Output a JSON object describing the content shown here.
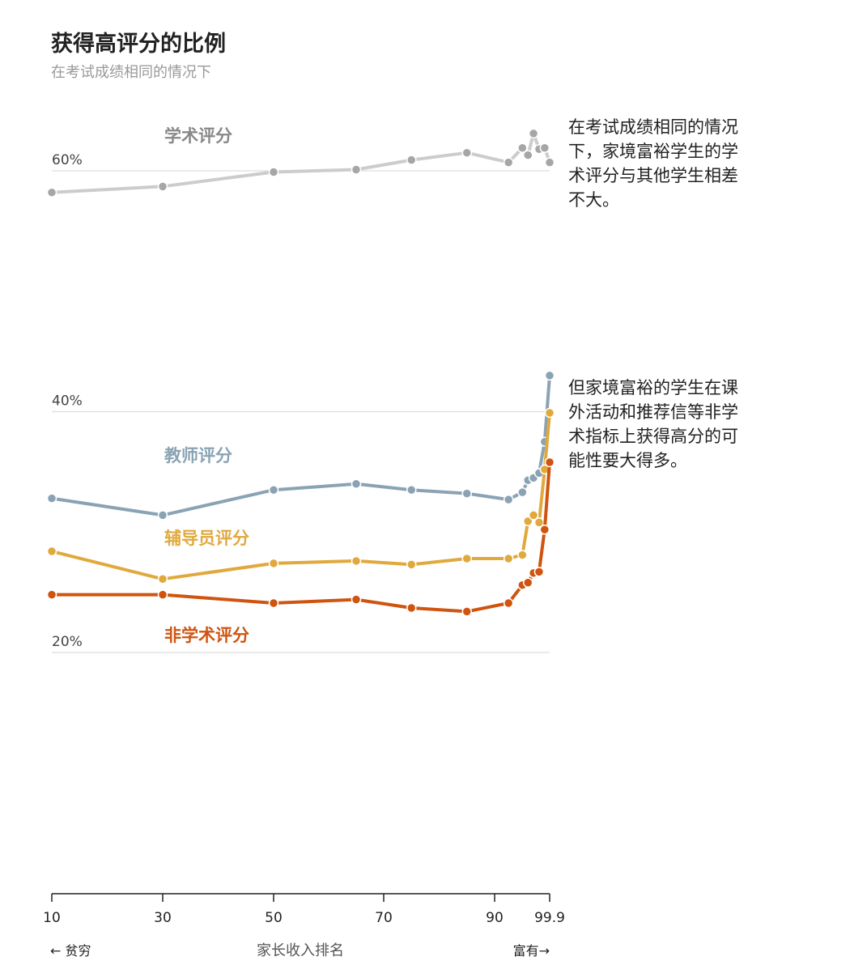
{
  "title": "获得高评分的比例",
  "subtitle": "在考试成绩相同的情况下",
  "annotations": [
    "在考试成绩相同的情况下，家境富裕学生的学术评分与其他学生相差不大。",
    "但家境富裕的学生在课外活动和推荐信等非学术指标上获得高分的可能性要大得多。"
  ],
  "colors": {
    "academic": "#cccccc",
    "academic_point": "#a6a6a6",
    "teacher": "#8aa3b3",
    "counselor": "#e0a93e",
    "nonacademic": "#cf5410",
    "grid": "#dddddd",
    "axis": "#222222"
  },
  "chart_data": {
    "type": "line",
    "xlabel": "家长收入排名",
    "x_left_note": "← 贫穷",
    "x_right_note": "富有→",
    "x_ticks": [
      10,
      30,
      50,
      70,
      90,
      99.9
    ],
    "x_tick_labels": [
      "10",
      "30",
      "50",
      "70",
      "90",
      "99.9"
    ],
    "xlim": [
      10,
      99.9
    ],
    "y_ticks": [
      20,
      40,
      60
    ],
    "y_tick_labels": [
      "20%",
      "40%",
      "60%"
    ],
    "series": [
      {
        "name": "学术评分",
        "color_key": "academic",
        "x": [
          10,
          30,
          50,
          65,
          75,
          85,
          92.5,
          95,
          96,
          97,
          98,
          99,
          99.9
        ],
        "y": [
          58.2,
          58.7,
          59.9,
          60.1,
          60.9,
          61.5,
          60.7,
          61.9,
          61.3,
          63.1,
          61.8,
          61.9,
          60.7
        ]
      },
      {
        "name": "教师评分",
        "color_key": "teacher",
        "x": [
          10,
          30,
          50,
          65,
          75,
          85,
          92.5,
          95,
          96,
          97,
          98,
          99,
          99.9
        ],
        "y": [
          32.8,
          31.4,
          33.5,
          34.0,
          33.5,
          33.2,
          32.7,
          33.3,
          34.3,
          34.5,
          34.9,
          37.5,
          43.0
        ]
      },
      {
        "name": "辅导员评分",
        "color_key": "counselor",
        "x": [
          10,
          30,
          50,
          65,
          75,
          85,
          92.5,
          95,
          96,
          97,
          98,
          99,
          99.9
        ],
        "y": [
          28.4,
          26.1,
          27.4,
          27.6,
          27.3,
          27.8,
          27.8,
          28.1,
          30.9,
          31.4,
          30.8,
          35.2,
          39.9
        ]
      },
      {
        "name": "非学术评分",
        "color_key": "nonacademic",
        "x": [
          10,
          30,
          50,
          65,
          75,
          85,
          92.5,
          95,
          96,
          97,
          98,
          99,
          99.9
        ],
        "y": [
          24.8,
          24.8,
          24.1,
          24.4,
          23.7,
          23.4,
          24.1,
          25.6,
          25.8,
          26.6,
          26.7,
          30.2,
          35.8
        ]
      }
    ]
  }
}
